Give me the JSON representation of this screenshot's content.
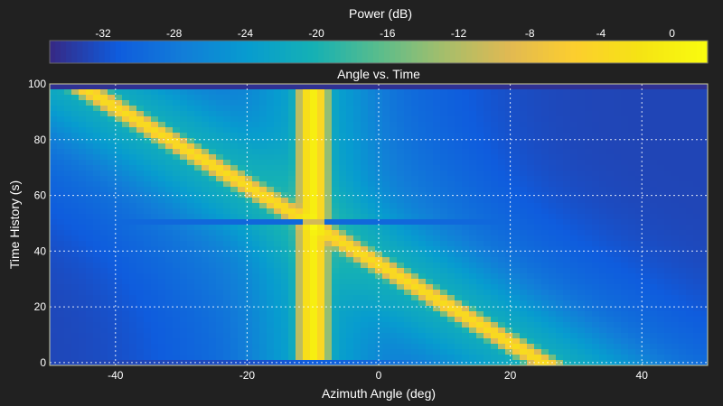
{
  "chart_data": {
    "type": "heatmap",
    "title": "Angle vs. Time",
    "xlabel": "Azimuth Angle (deg)",
    "ylabel": "Time History (s)",
    "xlim": [
      -50,
      50
    ],
    "ylim": [
      -1,
      100
    ],
    "x_ticks": [
      -40,
      -20,
      0,
      20,
      40
    ],
    "y_ticks": [
      0,
      20,
      40,
      60,
      80,
      100
    ],
    "grid": true,
    "colorbar": {
      "label": "Power (dB)",
      "range": [
        -35,
        2
      ],
      "ticks": [
        -32,
        -28,
        -24,
        -20,
        -16,
        -12,
        -8,
        -4,
        0
      ],
      "colormap": "parula",
      "position": "top"
    },
    "signals": [
      {
        "description": "stationary source",
        "azimuth_deg": -10,
        "time_range_s": [
          0,
          100
        ],
        "peak_db": 0
      },
      {
        "description": "moving source",
        "azimuth_at_t0_deg": 25,
        "azimuth_at_t100_deg": -46,
        "peak_db": -3
      }
    ],
    "noise_floor_db": -33
  }
}
